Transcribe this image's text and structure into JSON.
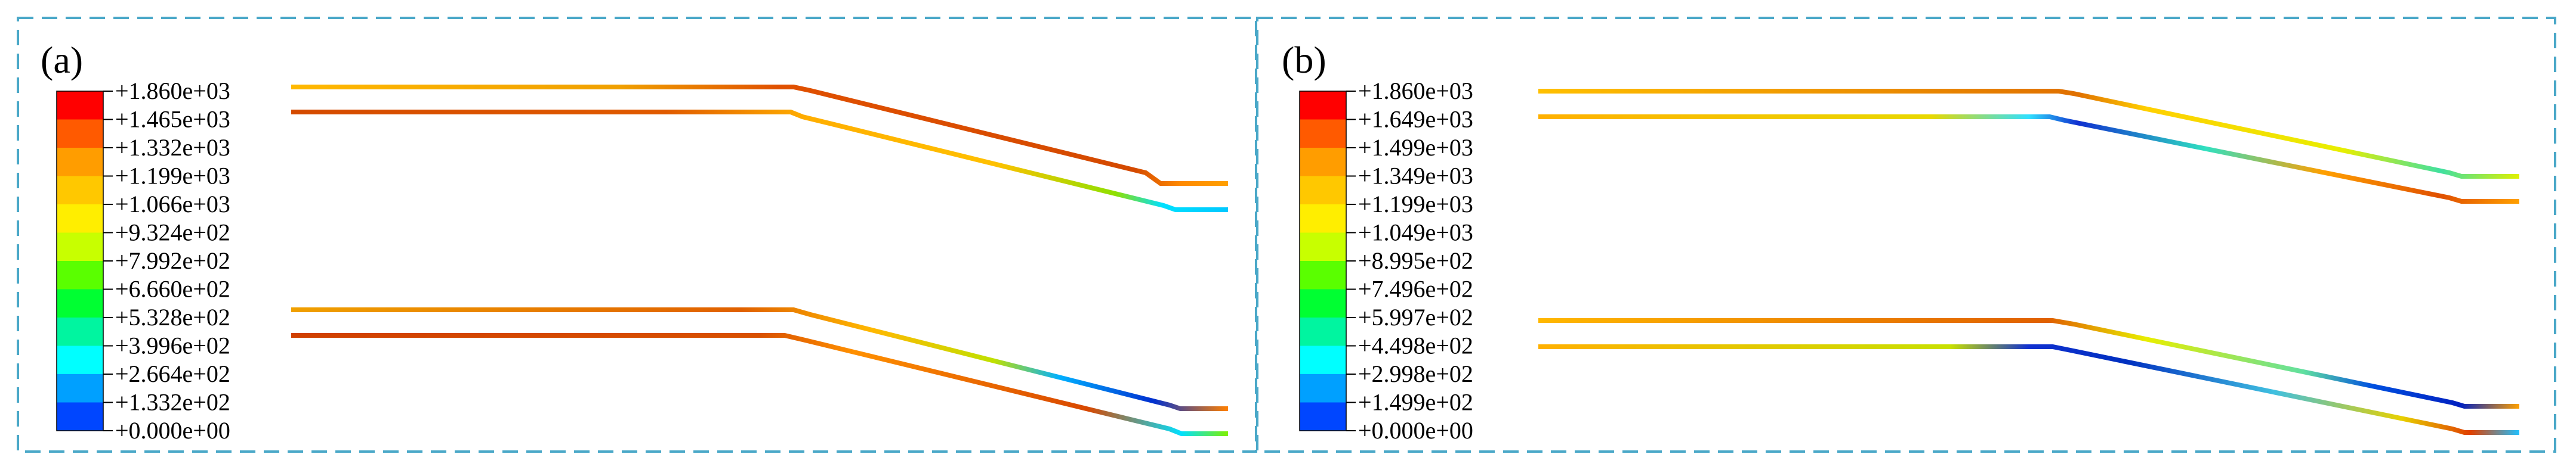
{
  "panels": [
    {
      "label": "(a)",
      "legend": {
        "values": [
          "+1.860e+03",
          "+1.465e+03",
          "+1.332e+03",
          "+1.199e+03",
          "+1.066e+03",
          "+9.324e+02",
          "+7.992e+02",
          "+6.660e+02",
          "+5.328e+02",
          "+3.996e+02",
          "+2.664e+02",
          "+1.332e+02",
          "+0.000e+00"
        ],
        "colors": [
          "#ff0000",
          "#ff5a00",
          "#ff9d00",
          "#ffc800",
          "#ffee00",
          "#c8ff00",
          "#5aff00",
          "#00ff32",
          "#00f5a0",
          "#00ffff",
          "#00a0ff",
          "#0046ff",
          "#0000ff"
        ]
      }
    },
    {
      "label": "(b)",
      "legend": {
        "values": [
          "+1.860e+03",
          "+1.649e+03",
          "+1.499e+03",
          "+1.349e+03",
          "+1.199e+03",
          "+1.049e+03",
          "+8.995e+02",
          "+7.496e+02",
          "+5.997e+02",
          "+4.498e+02",
          "+2.998e+02",
          "+1.499e+02",
          "+0.000e+00"
        ],
        "colors": [
          "#ff0000",
          "#ff5a00",
          "#ff9d00",
          "#ffc800",
          "#ffee00",
          "#c8ff00",
          "#5aff00",
          "#00ff32",
          "#00f5a0",
          "#00ffff",
          "#00a0ff",
          "#0046ff",
          "#0000ff"
        ]
      }
    }
  ],
  "frame_color": "#4aa8c8"
}
